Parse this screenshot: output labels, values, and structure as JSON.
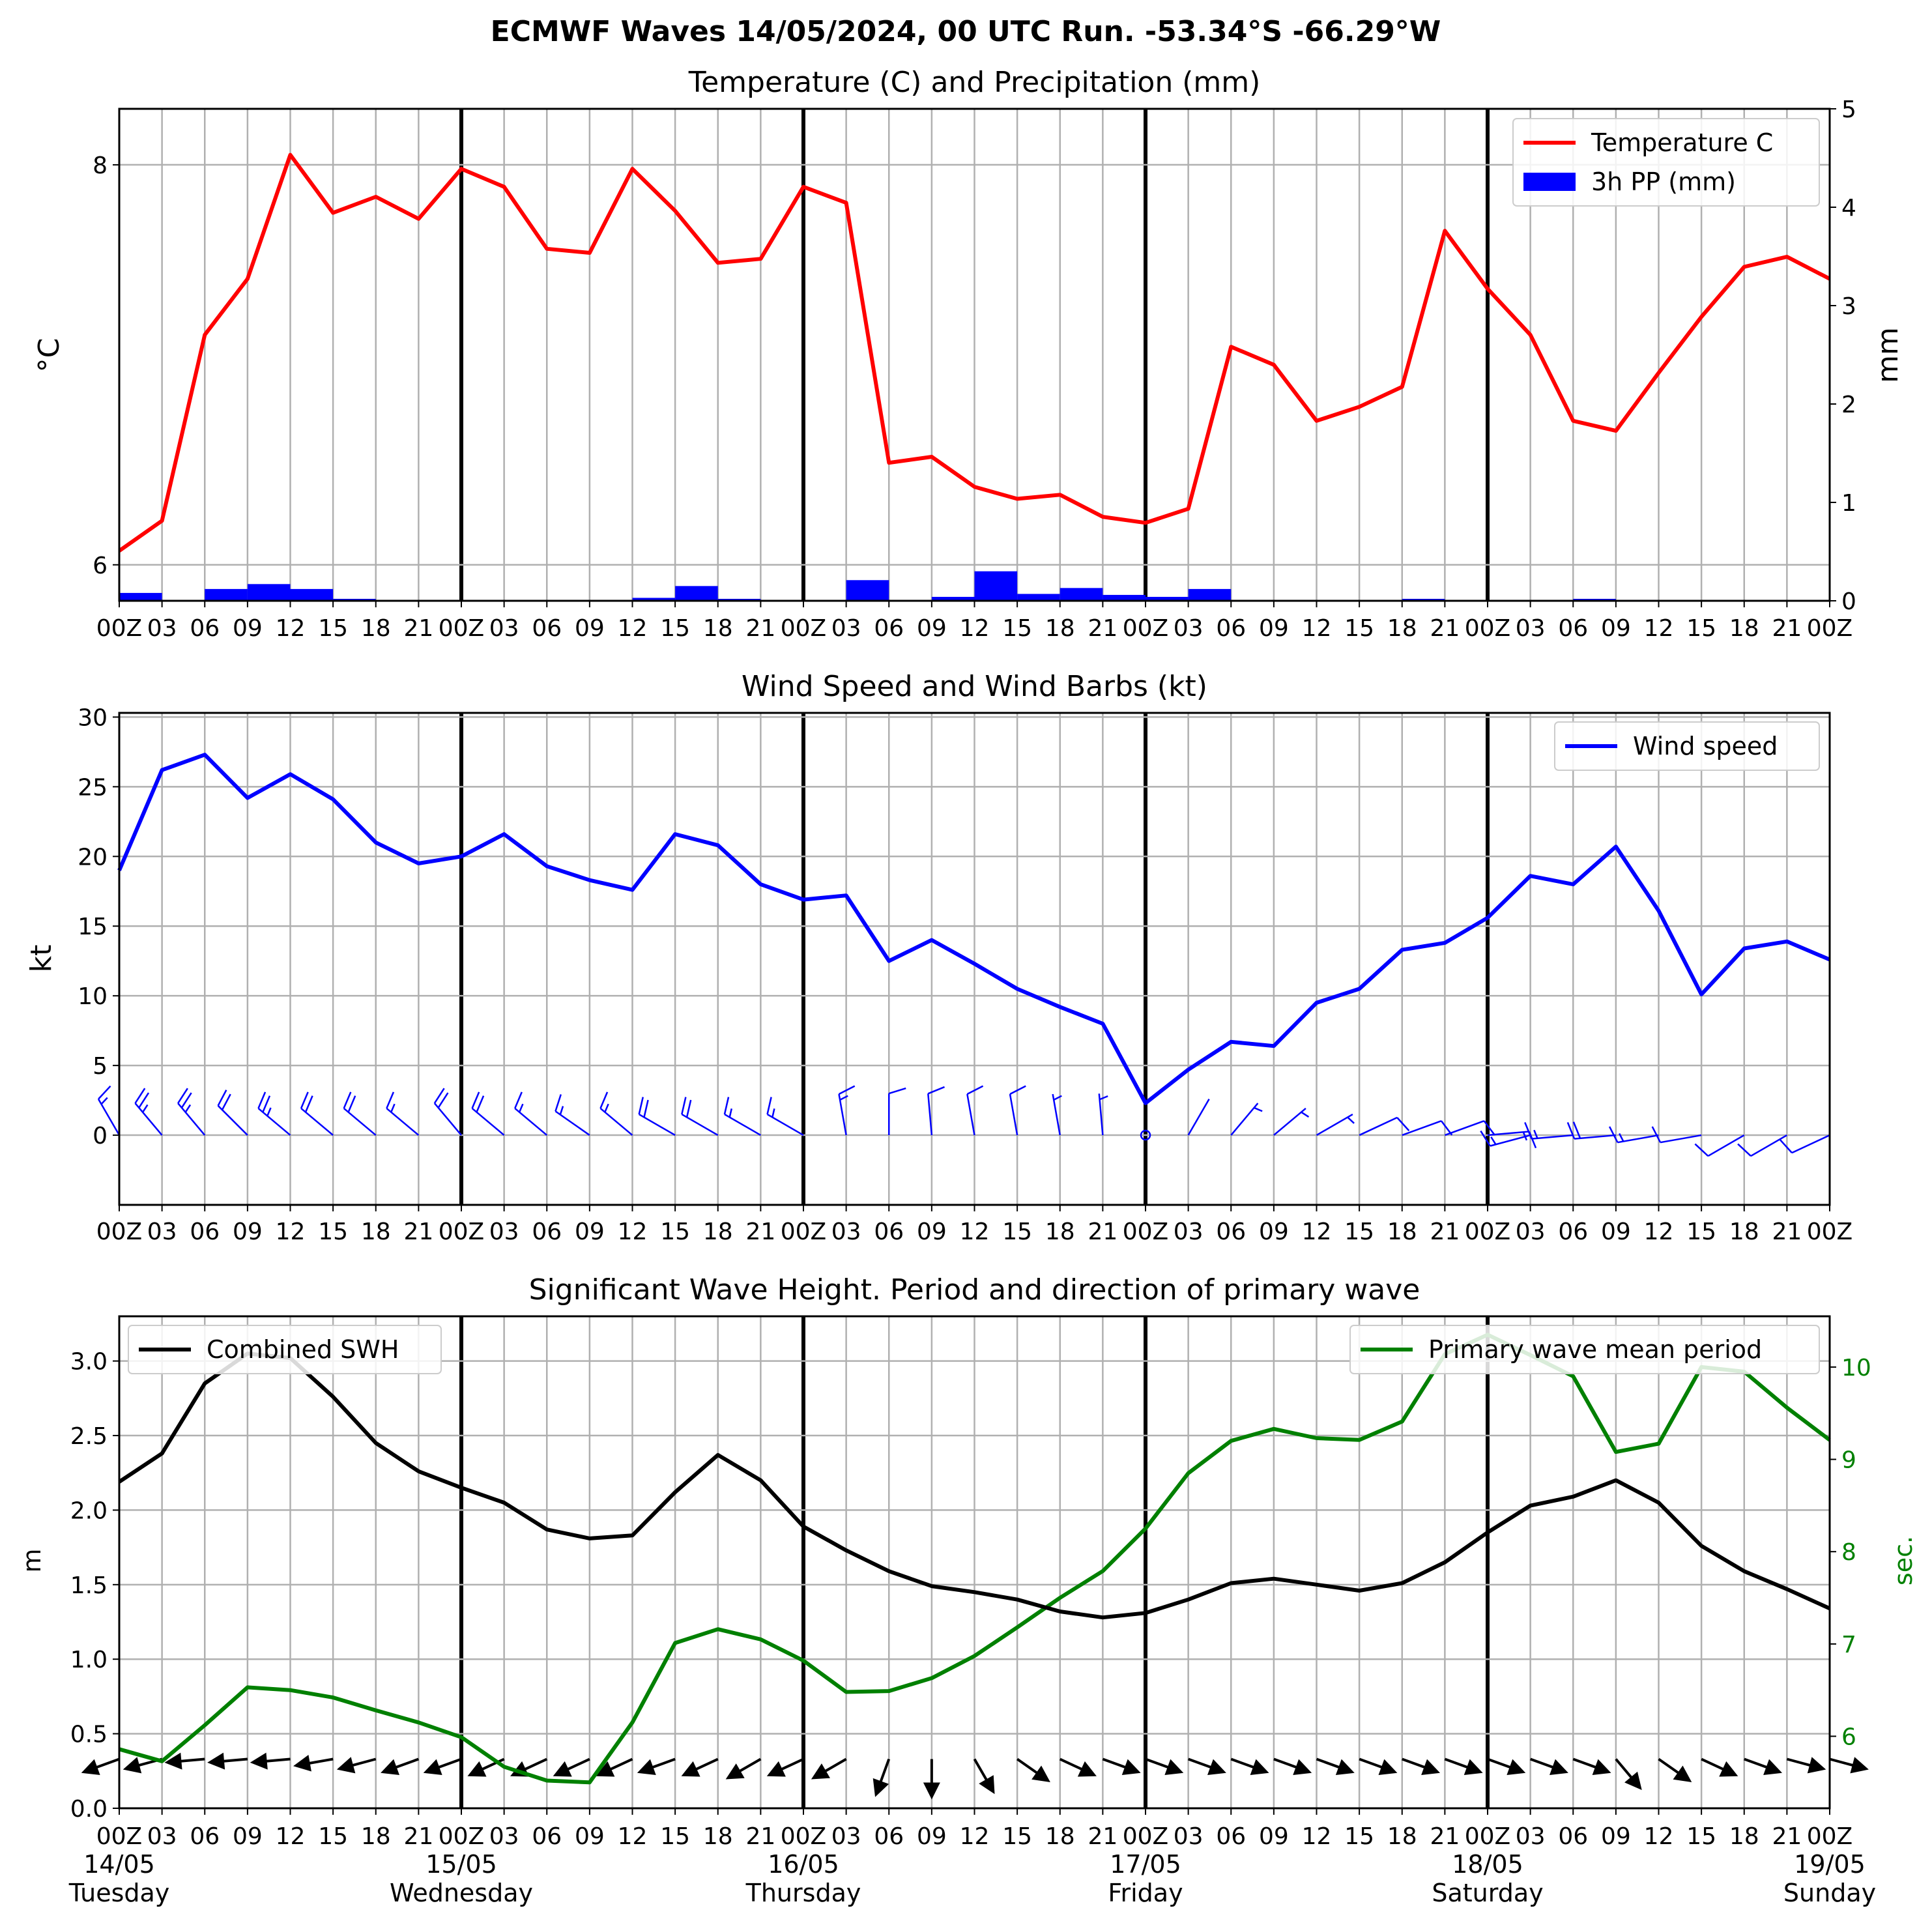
{
  "suptitle": "ECMWF Waves 14/05/2024, 00 UTC Run. -53.34°S -66.29°W",
  "hour_ticks": [
    "00Z",
    "03",
    "06",
    "09",
    "12",
    "15",
    "18",
    "21",
    "00Z",
    "03",
    "06",
    "09",
    "12",
    "15",
    "18",
    "21",
    "00Z",
    "03",
    "06",
    "09",
    "12",
    "15",
    "18",
    "21",
    "00Z",
    "03",
    "06",
    "09",
    "12",
    "15",
    "18",
    "21",
    "00Z",
    "03",
    "06",
    "09",
    "12",
    "15",
    "18",
    "21",
    "00Z"
  ],
  "day_labels": [
    {
      "date": "14/05",
      "day": "Tuesday"
    },
    {
      "date": "15/05",
      "day": "Wednesday"
    },
    {
      "date": "16/05",
      "day": "Thursday"
    },
    {
      "date": "17/05",
      "day": "Friday"
    },
    {
      "date": "18/05",
      "day": "Saturday"
    },
    {
      "date": "19/05",
      "day": "Sunday"
    }
  ],
  "colors": {
    "temperature": "#ff0000",
    "precip": "#0000ff",
    "wind": "#0000ff",
    "swh": "#000000",
    "period": "#008000",
    "grid": "#b0b0b0"
  },
  "chart_data": [
    {
      "type": "line",
      "title": "Temperature (C) and Precipitation (mm)",
      "ylabel": "°C",
      "y2label": "mm",
      "yticks": [
        "6",
        "8"
      ],
      "y2ticks": [
        "0",
        "1",
        "2",
        "3",
        "4",
        "5"
      ],
      "ylim": [
        5.82,
        8.28
      ],
      "y2lim": [
        0,
        5
      ],
      "legend": {
        "position": "top-right",
        "entries": [
          "Temperature C",
          "3h PP (mm)"
        ]
      },
      "x_step_hours": 3,
      "series": [
        {
          "name": "Temperature C",
          "kind": "line",
          "values": [
            6.07,
            6.22,
            7.15,
            7.43,
            8.05,
            7.76,
            7.84,
            7.73,
            7.98,
            7.89,
            7.58,
            7.56,
            7.98,
            7.77,
            7.51,
            7.53,
            7.89,
            7.81,
            6.51,
            6.54,
            6.39,
            6.33,
            6.35,
            6.24,
            6.21,
            6.28,
            7.09,
            7.0,
            6.72,
            6.79,
            6.89,
            7.67,
            7.38,
            7.15,
            6.72,
            6.67,
            6.96,
            7.24,
            7.49,
            7.54,
            7.43
          ]
        },
        {
          "name": "3h PP (mm)",
          "kind": "bar",
          "values": [
            0.08,
            0,
            0.12,
            0.17,
            0.12,
            0.02,
            0,
            0,
            0,
            0,
            0,
            0,
            0.03,
            0.15,
            0.02,
            0,
            0,
            0.21,
            0,
            0.04,
            0.3,
            0.07,
            0.13,
            0.06,
            0.04,
            0.12,
            0,
            0,
            0,
            0,
            0.02,
            0,
            0,
            0,
            0.02,
            0.01,
            0,
            0,
            0,
            0
          ]
        }
      ]
    },
    {
      "type": "line",
      "title": "Wind Speed and Wind Barbs (kt)",
      "ylabel": "kt",
      "yticks": [
        "0",
        "5",
        "10",
        "15",
        "20",
        "25",
        "30"
      ],
      "ylim": [
        -5,
        30.3
      ],
      "legend": {
        "position": "top-right",
        "entries": [
          "Wind speed"
        ]
      },
      "series": [
        {
          "name": "Wind speed",
          "values": [
            19.0,
            26.2,
            27.3,
            24.2,
            25.9,
            24.1,
            21.0,
            19.5,
            20.0,
            21.6,
            19.3,
            18.3,
            17.6,
            21.6,
            20.8,
            18.0,
            16.9,
            17.2,
            12.5,
            14.0,
            12.3,
            10.5,
            9.2,
            8.0,
            2.3,
            4.7,
            6.7,
            6.4,
            9.5,
            10.5,
            13.3,
            13.8,
            15.6,
            18.6,
            18.0,
            20.7,
            16.1,
            10.1,
            13.4,
            13.9,
            12.6
          ]
        },
        {
          "name": "Wind barbs",
          "kind": "barb",
          "direction_deg": [
            330,
            320,
            320,
            315,
            310,
            310,
            310,
            310,
            320,
            310,
            310,
            305,
            310,
            300,
            300,
            300,
            300,
            350,
            360,
            355,
            350,
            350,
            350,
            355,
            0,
            30,
            40,
            50,
            60,
            65,
            70,
            70,
            85,
            255,
            265,
            265,
            260,
            260,
            240,
            240,
            245
          ]
        }
      ]
    },
    {
      "type": "line",
      "title": "Significant Wave Height. Period and direction of primary wave",
      "ylabel": "m",
      "y2label": "sec.",
      "yticks": [
        "0.0",
        "0.5",
        "1.0",
        "1.5",
        "2.0",
        "2.5",
        "3.0"
      ],
      "y2ticks": [
        "6",
        "7",
        "8",
        "9",
        "10"
      ],
      "ylim": [
        0,
        3.3
      ],
      "y2lim": [
        5.22,
        10.55
      ],
      "legend": [
        {
          "position": "top-left",
          "entries": [
            "Combined SWH"
          ]
        },
        {
          "position": "top-right",
          "entries": [
            "Primary wave mean period"
          ]
        }
      ],
      "series": [
        {
          "name": "Combined SWH",
          "axis": "left",
          "values": [
            2.19,
            2.38,
            2.85,
            3.05,
            3.02,
            2.76,
            2.45,
            2.26,
            2.15,
            2.05,
            1.87,
            1.81,
            1.83,
            2.12,
            2.37,
            2.2,
            1.89,
            1.73,
            1.59,
            1.49,
            1.45,
            1.4,
            1.32,
            1.28,
            1.31,
            1.4,
            1.51,
            1.54,
            1.5,
            1.46,
            1.51,
            1.65,
            1.85,
            2.03,
            2.09,
            2.2,
            2.05,
            1.76,
            1.59,
            1.47,
            1.34
          ]
        },
        {
          "name": "Primary wave mean period",
          "axis": "right",
          "values": [
            5.86,
            5.73,
            6.12,
            6.53,
            6.5,
            6.42,
            6.28,
            6.15,
            5.99,
            5.67,
            5.52,
            5.5,
            6.15,
            7.01,
            7.16,
            7.05,
            6.82,
            6.48,
            6.49,
            6.63,
            6.87,
            7.18,
            7.5,
            7.79,
            8.25,
            8.85,
            9.2,
            9.33,
            9.23,
            9.21,
            9.41,
            10.14,
            10.35,
            10.13,
            9.9,
            9.08,
            9.17,
            10.0,
            9.95,
            9.56,
            9.21
          ]
        },
        {
          "name": "Primary wave direction",
          "kind": "arrows",
          "direction_deg": [
            250,
            255,
            265,
            265,
            265,
            260,
            255,
            250,
            250,
            245,
            245,
            245,
            245,
            250,
            245,
            240,
            245,
            240,
            200,
            180,
            150,
            125,
            115,
            110,
            110,
            110,
            110,
            110,
            110,
            110,
            110,
            110,
            110,
            110,
            110,
            140,
            125,
            115,
            110,
            105,
            105
          ]
        }
      ]
    }
  ]
}
